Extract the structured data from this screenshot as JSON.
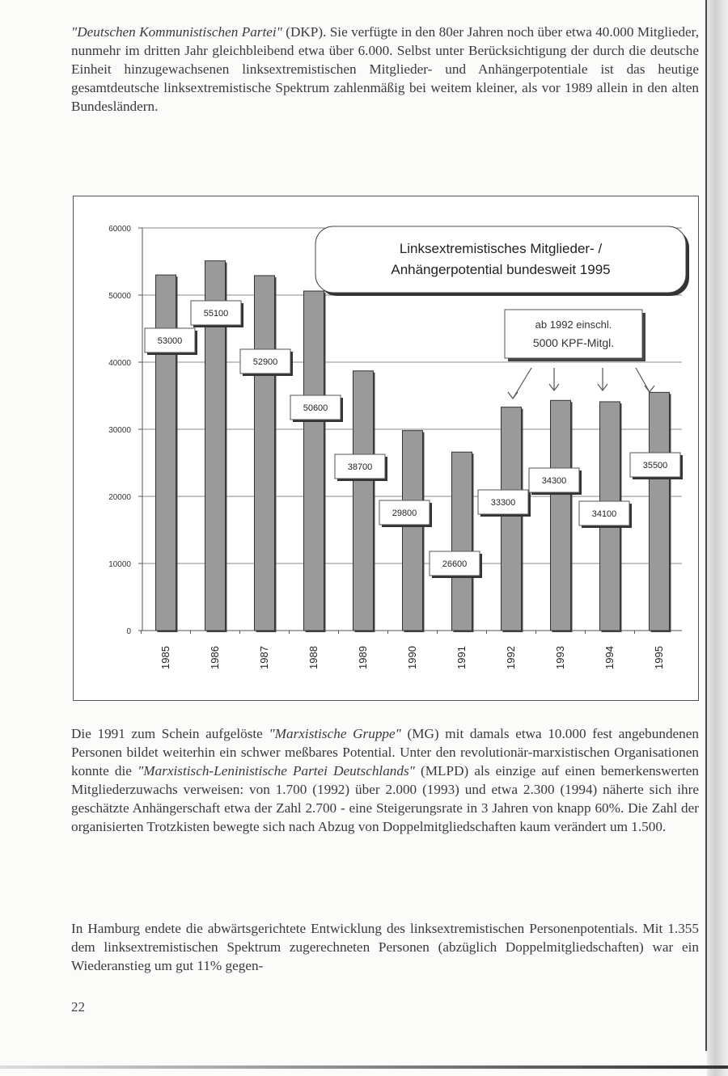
{
  "paragraphs": {
    "p1_italic": "\"Deutschen Kommunistischen Partei\"",
    "p1_rest": " (DKP). Sie verfügte in den 80er Jahren noch über etwa 40.000 Mitglieder, nunmehr im dritten Jahr gleichbleibend etwa über 6.000. Selbst unter Berücksichtigung der durch die deutsche Einheit hinzugewachsenen linksextremistischen Mitglieder- und Anhängerpotentiale ist das heutige gesamtdeutsche linksextremistische Spektrum zahlenmäßig bei weitem kleiner, als vor 1989 allein in den alten Bundesländern.",
    "p2_a": "Die 1991 zum Schein aufgelöste ",
    "p2_b": "\"Marxistische Gruppe\"",
    "p2_c": " (MG) mit damals etwa 10.000 fest angebundenen Personen bildet weiterhin ein schwer meßbares Potential. Unter den revolutionär-marxistischen Organisationen konnte die ",
    "p2_d": "\"Marxistisch-Leninistische Partei Deutschlands\"",
    "p2_e": " (MLPD) als einzige auf einen bemerkenswerten Mitgliederzuwachs verweisen: von 1.700 (1992) über 2.000 (1993) und etwa 2.300 (1994) näherte sich ihre geschätzte Anhängerschaft etwa der Zahl 2.700 - eine Steigerungsrate in 3 Jahren von knapp 60%. Die Zahl der organisierten Trotzkisten bewegte sich nach Abzug von Doppelmitgliedschaften kaum verändert um 1.500.",
    "p3": "In Hamburg endete die abwärtsgerichtete Entwicklung des linksextremistischen Personenpotentials. Mit 1.355 dem linksextremistischen Spektrum zugerechneten Personen (abzüglich Doppelmitgliedschaften) war ein Wiederanstieg um gut 11% gegen-"
  },
  "page_number": "22",
  "chart_data": {
    "type": "bar",
    "title_line1": "Linksextremistisches Mitglieder- /",
    "title_line2": "Anhängerpotential bundesweit 1995",
    "annotation_line1": "ab 1992 einschl.",
    "annotation_line2": "5000 KPF-Mitgl.",
    "categories": [
      "1985",
      "1986",
      "1987",
      "1988",
      "1989",
      "1990",
      "1991",
      "1992",
      "1993",
      "1994",
      "1995"
    ],
    "values": [
      53000,
      55100,
      52900,
      50600,
      38700,
      29800,
      26600,
      33300,
      34300,
      34100,
      35500
    ],
    "data_labels": [
      "53000",
      "55100",
      "52900",
      "50600",
      "38700",
      "29800",
      "26600",
      "33300",
      "34300",
      "34100",
      "35500"
    ],
    "y_ticks": [
      "0",
      "10000",
      "20000",
      "30000",
      "40000",
      "50000",
      "60000"
    ],
    "ylim": [
      0,
      60000
    ],
    "grid": true,
    "bar_color": "#9a9a9a"
  }
}
